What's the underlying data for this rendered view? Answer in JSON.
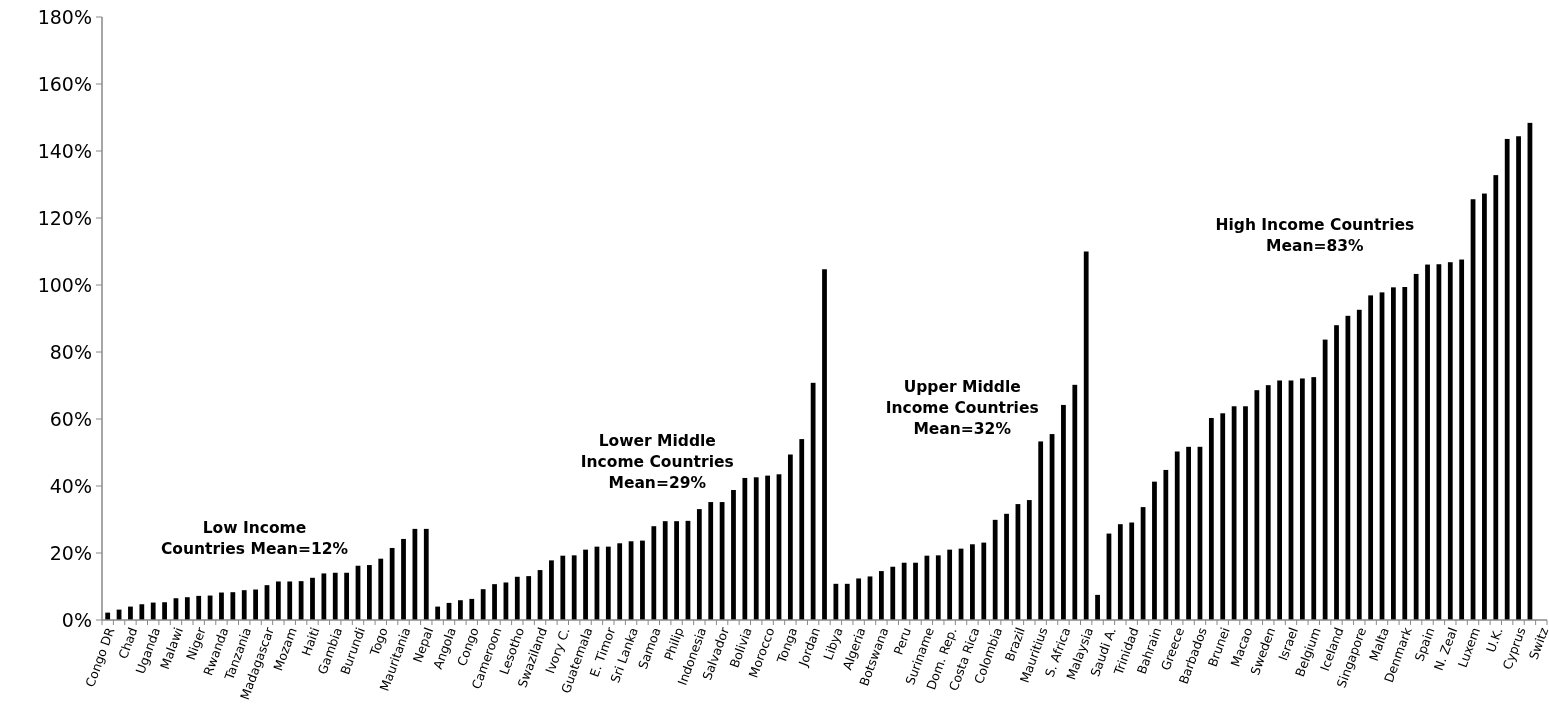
{
  "chart_data": {
    "type": "bar",
    "categories": [
      "Congo DR",
      null,
      "Chad",
      null,
      "Uganda",
      null,
      "Malawi",
      null,
      "Niger",
      null,
      "Rwanda",
      null,
      "Tanzania",
      null,
      "Madagascar",
      null,
      "Mozam",
      null,
      "Haiti",
      null,
      "Gambia",
      null,
      "Burundi",
      null,
      "Togo",
      null,
      "Mauritania",
      null,
      "Nepal",
      null,
      "Angola",
      null,
      "Congo",
      null,
      "Cameroon",
      null,
      "Lesotho",
      null,
      "Swaziland",
      null,
      "Ivory C.",
      null,
      "Guatemala",
      null,
      "E. Timor",
      null,
      "Sri Lanka",
      null,
      "Samoa",
      null,
      "Philip",
      null,
      "Indonesia",
      null,
      "Salvador",
      null,
      "Bolivia",
      null,
      "Morocco",
      null,
      "Tonga",
      null,
      "Jordan",
      null,
      "Libya",
      null,
      "Algeria",
      null,
      "Botswana",
      null,
      "Peru",
      null,
      "Suriname",
      null,
      "Dom. Rep.",
      null,
      "Costa Rica",
      null,
      "Colombia",
      null,
      "Brazil",
      null,
      "Mauritius",
      null,
      "S. Africa",
      null,
      "Malaysia",
      null,
      "Saudi A.",
      null,
      "Trinidad",
      null,
      "Bahrain",
      null,
      "Greece",
      null,
      "Barbados",
      null,
      "Brunei",
      null,
      "Macao",
      null,
      "Sweden",
      null,
      "Israel",
      null,
      "Belgium",
      null,
      "Iceland",
      null,
      "Singapore",
      null,
      "Malta",
      null,
      "Denmark",
      null,
      "Spain",
      null,
      "N. Zeal",
      null,
      "Luxem",
      null,
      "U.K.",
      null,
      "Cyprus",
      null,
      "Switz"
    ],
    "values": [
      2.2,
      3.1,
      4,
      4.7,
      5.2,
      5.3,
      6.5,
      6.8,
      7.2,
      7.3,
      8.2,
      8.3,
      8.9,
      9.1,
      10.4,
      11.5,
      11.5,
      11.6,
      12.6,
      13.9,
      14.1,
      14.1,
      16.2,
      16.4,
      18.3,
      21.5,
      24.2,
      27.2,
      27.2,
      4,
      5.1,
      5.9,
      6.3,
      9.2,
      10.7,
      11.2,
      12.9,
      13.1,
      14.9,
      17.8,
      19.2,
      19.3,
      21,
      21.9,
      21.9,
      22.9,
      23.5,
      23.7,
      28,
      29.5,
      29.5,
      29.6,
      33.1,
      35.2,
      35.2,
      38.8,
      42.4,
      42.6,
      43.1,
      43.5,
      49.4,
      54,
      70.8,
      104.7,
      10.8,
      10.8,
      12.4,
      13,
      14.6,
      15.9,
      17.1,
      17.1,
      19.2,
      19.3,
      21,
      21.3,
      22.6,
      23.1,
      29.9,
      31.7,
      34.6,
      35.8,
      53.3,
      55.5,
      64.2,
      70.2,
      110,
      7.5,
      25.8,
      28.6,
      29.1,
      33.7,
      41.3,
      44.8,
      50.3,
      51.7,
      51.7,
      60.3,
      61.7,
      63.8,
      63.8,
      68.6,
      70.1,
      71.5,
      71.5,
      72.1,
      72.5,
      83.7,
      88,
      90.8,
      92.6,
      96.9,
      97.8,
      99.3,
      99.4,
      103.3,
      106.1,
      106.2,
      106.8,
      107.6,
      125.6,
      127.3,
      132.8,
      143.6,
      144.4,
      148.4,
      null
    ],
    "color": "#000000",
    "ylim": [
      0,
      180
    ],
    "yticks": [
      {
        "value": 0,
        "label": "0%"
      },
      {
        "value": 20,
        "label": "20%"
      },
      {
        "value": 40,
        "label": "40%"
      },
      {
        "value": 60,
        "label": "60%"
      },
      {
        "value": 80,
        "label": "80%"
      },
      {
        "value": 100,
        "label": "100%"
      },
      {
        "value": 120,
        "label": "120%"
      },
      {
        "value": 140,
        "label": "140%"
      },
      {
        "value": 160,
        "label": "160%"
      },
      {
        "value": 180,
        "label": "180%"
      }
    ],
    "grid": false,
    "annotations": [
      "Low Income\nCountries Mean=12%",
      "Lower Middle\nIncome Countries\nMean=29%",
      "Upper Middle\nIncome Countries\nMean=32%",
      "High Income Countries\nMean=83%"
    ]
  }
}
